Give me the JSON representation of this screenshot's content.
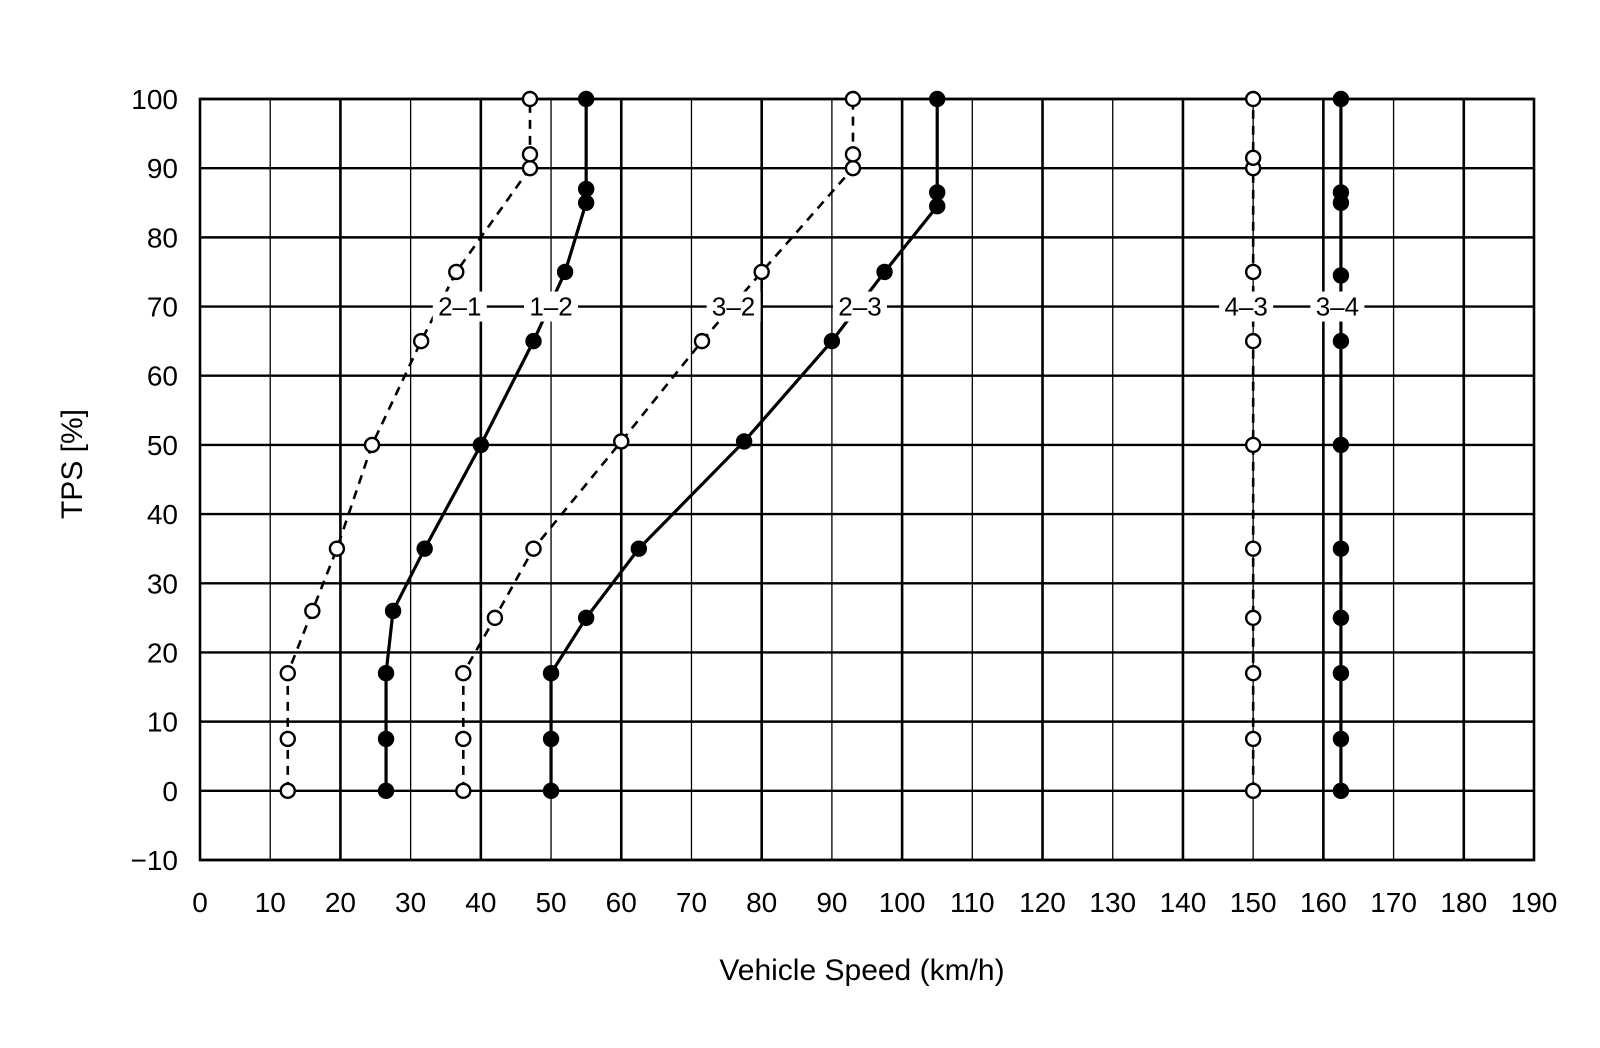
{
  "chart_data": {
    "type": "line",
    "xlabel": "Vehicle Speed (km/h)",
    "ylabel": "TPS [%]",
    "xlim": [
      0,
      190
    ],
    "ylim": [
      -10,
      100
    ],
    "x_ticks": [
      "0",
      "10",
      "20",
      "30",
      "40",
      "50",
      "60",
      "70",
      "80",
      "90",
      "100",
      "110",
      "120",
      "130",
      "140",
      "150",
      "160",
      "170",
      "180",
      "190"
    ],
    "y_ticks": [
      "100",
      "90",
      "80",
      "70",
      "60",
      "50",
      "40",
      "30",
      "20",
      "10",
      "0",
      "−10"
    ],
    "grid": true,
    "series": [
      {
        "name": "2–1",
        "style": "dashed",
        "marker": "open",
        "x": [
          12.5,
          12.5,
          12.5,
          16,
          19.5,
          24.5,
          31.5,
          36.5,
          47,
          47,
          47
        ],
        "y": [
          0,
          7.5,
          17,
          26,
          35,
          50,
          65,
          75,
          90,
          92,
          100
        ]
      },
      {
        "name": "1–2",
        "style": "solid",
        "marker": "filled",
        "x": [
          26.5,
          26.5,
          26.5,
          27.5,
          32,
          40,
          47.5,
          52,
          55,
          55,
          55
        ],
        "y": [
          0,
          7.5,
          17,
          26,
          35,
          50,
          65,
          75,
          85,
          87,
          100
        ]
      },
      {
        "name": "3–2",
        "style": "dashed",
        "marker": "open",
        "x": [
          37.5,
          37.5,
          37.5,
          42,
          47.5,
          60,
          71.5,
          80,
          93,
          93,
          93
        ],
        "y": [
          0,
          7.5,
          17,
          25,
          35,
          50.5,
          65,
          75,
          90,
          92,
          100
        ]
      },
      {
        "name": "2–3",
        "style": "solid",
        "marker": "filled",
        "x": [
          50,
          50,
          50,
          55,
          62.5,
          77.5,
          90,
          97.5,
          105,
          105,
          105
        ],
        "y": [
          0,
          7.5,
          17,
          25,
          35,
          50.5,
          65,
          75,
          84.5,
          86.5,
          100
        ]
      },
      {
        "name": "4–3",
        "style": "dashed",
        "marker": "open",
        "x": [
          150,
          150,
          150,
          150,
          150,
          150,
          150,
          150,
          150,
          150,
          150
        ],
        "y": [
          0,
          7.5,
          17,
          25,
          35,
          50,
          65,
          75,
          90,
          91.5,
          100
        ]
      },
      {
        "name": "3–4",
        "style": "solid",
        "marker": "filled",
        "x": [
          162.5,
          162.5,
          162.5,
          162.5,
          162.5,
          162.5,
          162.5,
          162.5,
          162.5,
          162.5,
          162.5
        ],
        "y": [
          0,
          7.5,
          17,
          25,
          35,
          50,
          65,
          74.5,
          85,
          86.5,
          100
        ]
      }
    ],
    "series_labels": [
      {
        "text": "2–1",
        "x": 37,
        "y": 70
      },
      {
        "text": "1–2",
        "x": 50,
        "y": 70
      },
      {
        "text": "3–2",
        "x": 76,
        "y": 70
      },
      {
        "text": "2–3",
        "x": 94,
        "y": 70
      },
      {
        "text": "4–3",
        "x": 149,
        "y": 70
      },
      {
        "text": "3–4",
        "x": 162,
        "y": 70
      }
    ]
  }
}
